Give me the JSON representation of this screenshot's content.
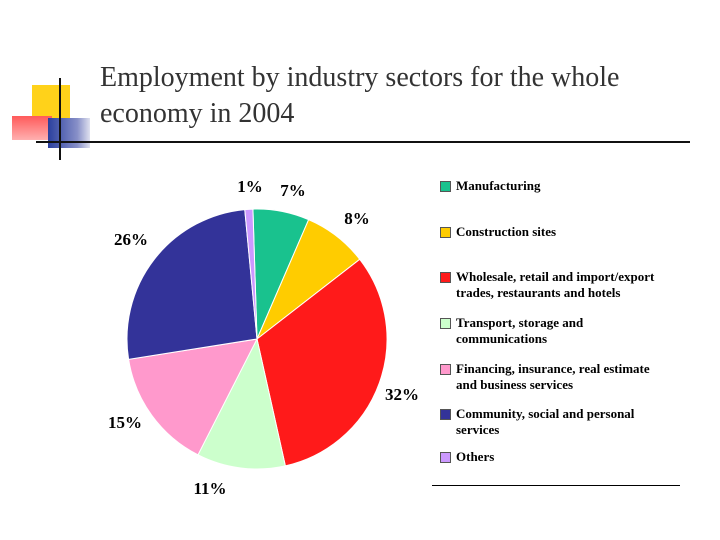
{
  "slide": {
    "title_lines": [
      "Employment by industry sectors for the whole",
      "economy in 2004"
    ]
  },
  "colors": {
    "accent_yellow": "#ffd21a",
    "accent_red": "#ff5a5a",
    "accent_blue": "#2a3f9e"
  },
  "chart_data": {
    "type": "pie",
    "title": "Employment by industry sectors for the whole economy in 2004",
    "legend_position": "right",
    "slices": [
      {
        "name": "Manufacturing",
        "value": 7,
        "label": "7%",
        "color": "#19c28e"
      },
      {
        "name": "Construction sites",
        "value": 8,
        "label": "8%",
        "color": "#ffcc00"
      },
      {
        "name": "Wholesale, retail and import/export trades, restaurants and hotels",
        "value": 32,
        "label": "32%",
        "color": "#ff1a1a"
      },
      {
        "name": "Transport, storage and communications",
        "value": 11,
        "label": "11%",
        "color": "#ccffcc"
      },
      {
        "name": "Financing, insurance, real estimate and business services",
        "value": 15,
        "label": "15%",
        "color": "#ff99cc"
      },
      {
        "name": "Community, social and personal services",
        "value": 26,
        "label": "26%",
        "color": "#333399"
      },
      {
        "name": "Others",
        "value": 1,
        "label": "1%",
        "color": "#cc99ff"
      }
    ],
    "legend_lines": [
      [
        "Manufacturing"
      ],
      [
        "Construction sites"
      ],
      [
        "Wholesale, retail and import/export",
        "trades, restaurants and hotels"
      ],
      [
        "Transport, storage and",
        "communications"
      ],
      [
        "Financing, insurance, real estimate",
        "and business services"
      ],
      [
        "Community, social and personal",
        "services"
      ],
      [
        "Others"
      ]
    ]
  }
}
